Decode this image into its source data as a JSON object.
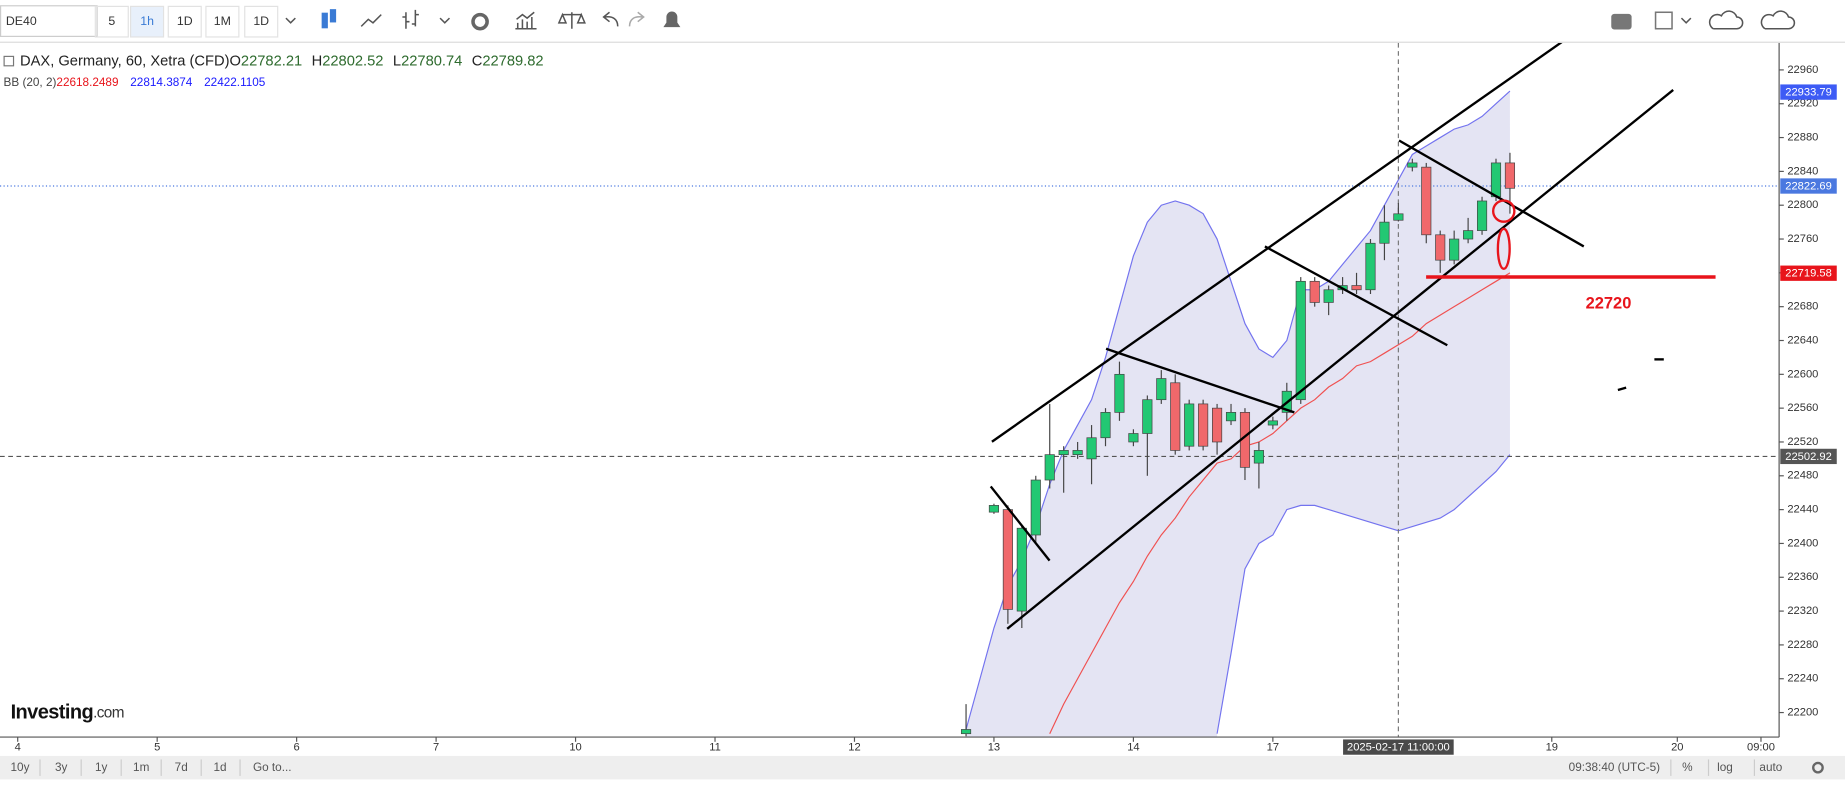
{
  "toolbar": {
    "symbol": "DE40",
    "intervals": [
      "5",
      "1h",
      "1D",
      "1M",
      "1D"
    ],
    "active": 1
  },
  "legend": {
    "title": "DAX, Germany, 60, Xetra (CFD)",
    "ohlc": [
      {
        "label": "O",
        "value": 22782.21
      },
      {
        "label": "H",
        "value": 22802.52
      },
      {
        "label": "L",
        "value": 22780.74
      },
      {
        "label": "C",
        "value": 22789.82
      }
    ],
    "bb_name": "BB (20, 2)",
    "bb_values": [
      {
        "value": 22618.2489,
        "color": "#e8141b"
      },
      {
        "value": 22814.3874,
        "color": "#1a1aff"
      },
      {
        "value": 22422.1105,
        "color": "#1a1aff"
      }
    ]
  },
  "chart_data": {
    "type": "candlestick",
    "up_color": "#22c873",
    "down_color": "#f0686b",
    "candles": {
      "x": [
        68,
        70,
        71,
        72,
        73,
        74,
        75,
        76,
        77,
        78,
        79,
        80,
        81,
        82,
        83,
        84,
        85,
        86,
        87,
        88,
        89,
        90,
        91,
        92,
        93,
        94,
        95,
        96,
        97,
        98,
        99,
        100,
        101,
        102,
        103,
        104,
        105,
        106,
        107
      ],
      "open": [
        22175,
        22437,
        22440,
        22320,
        22410,
        22475,
        22505,
        22505,
        22500,
        22525,
        22555,
        22520,
        22530,
        22570,
        22590,
        22515,
        22565,
        22560,
        22545,
        22555,
        22495,
        22540,
        22555,
        22570,
        22710,
        22685,
        22700,
        22705,
        22700,
        22755,
        22782.21,
        22845,
        22845,
        22765,
        22735,
        22760,
        22770,
        22810,
        22850
      ],
      "high": [
        22210,
        22447,
        22445,
        22422,
        22480,
        22565,
        22515,
        22520,
        22540,
        22560,
        22615,
        22535,
        22575,
        22605,
        22600,
        22570,
        22570,
        22565,
        22565,
        22560,
        22520,
        22550,
        22590,
        22715,
        22715,
        22705,
        22715,
        22720,
        22760,
        22800,
        22802.52,
        22855,
        22850,
        22770,
        22770,
        22785,
        22810,
        22855,
        22862
      ],
      "low": [
        22172,
        22435,
        22305,
        22300,
        22400,
        22465,
        22460,
        22500,
        22470,
        22515,
        22545,
        22515,
        22480,
        22565,
        22505,
        22510,
        22510,
        22505,
        22540,
        22475,
        22465,
        22535,
        22545,
        22565,
        22680,
        22670,
        22695,
        22695,
        22695,
        22735,
        22780.74,
        22840,
        22755,
        22720,
        22730,
        22755,
        22765,
        22805,
        22790
      ],
      "close": [
        22180,
        22445,
        22322,
        22418,
        22475,
        22505,
        22510,
        22510,
        22525,
        22555,
        22600,
        22530,
        22570,
        22595,
        22510,
        22565,
        22515,
        22520,
        22555,
        22490,
        22510,
        22545,
        22580,
        22710,
        22685,
        22700,
        22705,
        22700,
        22755,
        22780,
        22789.82,
        22850,
        22765,
        22735,
        22760,
        22770,
        22805,
        22850,
        22820
      ]
    },
    "bands_x": [
      68,
      69,
      70,
      71,
      72,
      73,
      74,
      75,
      76,
      77,
      78,
      79,
      80,
      81,
      82,
      83,
      84,
      85,
      86,
      87,
      88,
      89,
      90,
      91,
      92,
      93,
      94,
      95,
      96,
      97,
      98,
      99,
      100,
      101,
      102,
      103,
      104,
      105,
      106,
      107
    ],
    "band_fill": "#e4e4f3",
    "series": [
      {
        "name": "upper",
        "color": "#7373ef",
        "values": [
          22180,
          22240,
          22300,
          22350,
          22380,
          22420,
          22470,
          22510,
          22540,
          22570,
          22620,
          22680,
          22740,
          22780,
          22800,
          22805,
          22800,
          22790,
          22760,
          22710,
          22660,
          22630,
          22620,
          22640,
          22700,
          22700,
          22710,
          22730,
          22750,
          22770,
          22800,
          22830,
          22860,
          22870,
          22880,
          22890,
          22895,
          22905,
          22920,
          22935
        ]
      },
      {
        "name": "middle",
        "color": "#f05050",
        "values": [
          null,
          null,
          null,
          null,
          null,
          null,
          22175,
          22210,
          22240,
          22270,
          22300,
          22330,
          22355,
          22385,
          22410,
          22430,
          22455,
          22475,
          22495,
          22500,
          22515,
          22520,
          22530,
          22545,
          22560,
          22570,
          22585,
          22595,
          22610,
          22615,
          22625,
          22635,
          22645,
          22660,
          22670,
          22680,
          22690,
          22700,
          22710,
          22720
        ]
      },
      {
        "name": "lower",
        "color": "#7373ef",
        "values": [
          null,
          null,
          null,
          null,
          null,
          null,
          null,
          null,
          null,
          null,
          null,
          null,
          null,
          null,
          null,
          null,
          null,
          null,
          22175,
          22270,
          22370,
          22400,
          22410,
          22440,
          22445,
          22445,
          22440,
          22435,
          22430,
          22425,
          22420,
          22415,
          22420,
          22425,
          22430,
          22440,
          22455,
          22470,
          22485,
          22505
        ]
      }
    ],
    "xlim": [
      -1.27,
      126.3
    ],
    "xticks": [
      {
        "value": 0,
        "label": "4"
      },
      {
        "value": 10,
        "label": "5"
      },
      {
        "value": 20,
        "label": "6"
      },
      {
        "value": 30,
        "label": "7"
      },
      {
        "value": 40,
        "label": "10"
      },
      {
        "value": 50,
        "label": "11"
      },
      {
        "value": 60,
        "label": "12"
      },
      {
        "value": 70,
        "label": "13"
      },
      {
        "value": 80,
        "label": "14"
      },
      {
        "value": 90,
        "label": "17"
      },
      {
        "value": 110,
        "label": "19"
      },
      {
        "value": 119,
        "label": "20"
      },
      {
        "value": 125,
        "label": "09:00"
      }
    ],
    "ylim": [
      22171,
      22992
    ],
    "yticks": [
      22200,
      22240,
      22280,
      22320,
      22360,
      22400,
      22440,
      22480,
      22520,
      22560,
      22600,
      22640,
      22680,
      22720,
      22760,
      22800,
      22840,
      22880,
      22920,
      22960
    ],
    "price_labels": [
      {
        "value": 22933.79,
        "color": "#3d5bf5",
        "line": null
      },
      {
        "value": 22822.69,
        "color": "#4a78e0",
        "line": "dotted"
      },
      {
        "value": 22719.58,
        "color": "#e8141b",
        "line": null
      },
      {
        "value": 22502.92,
        "color": "#555555",
        "line": "dashed"
      }
    ],
    "crosshair_x": {
      "value": 99,
      "label": "2025-02-17 11:00:00"
    },
    "annotation": "22720"
  },
  "brand": {
    "name": "Investing",
    "suffix": ".com"
  },
  "bottom": {
    "ranges": [
      "10y",
      "3y",
      "1y",
      "1m",
      "7d",
      "1d"
    ],
    "goto": "Go to...",
    "clock": "09:38:40 (UTC-5)",
    "options": [
      "%",
      "log",
      "auto"
    ]
  }
}
